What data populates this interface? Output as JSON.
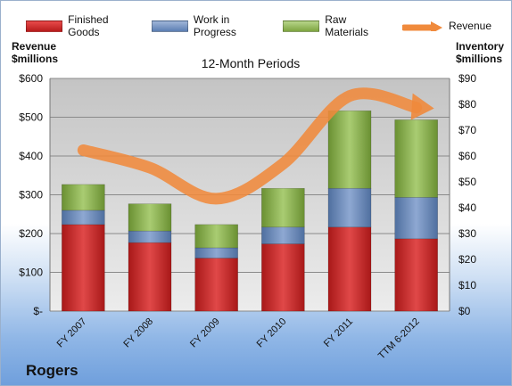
{
  "chart_data": {
    "type": "bar",
    "stacked": true,
    "subtitle": "12-Month Periods",
    "categories": [
      "FY 2007",
      "FY 2008",
      "FY 2009",
      "FY 2010",
      "FY 2011",
      "TTM 6-2012"
    ],
    "series": [
      {
        "name": "Finished Goods",
        "axis": "right",
        "color": "#c62828",
        "values": [
          33.5,
          26.5,
          20.5,
          26,
          32.5,
          28
        ]
      },
      {
        "name": "Work in Progress",
        "axis": "right",
        "color": "#6f8fc0",
        "values": [
          5.5,
          4.5,
          4,
          6.5,
          15,
          16
        ]
      },
      {
        "name": "Raw Materials",
        "axis": "right",
        "color": "#8fb454",
        "values": [
          10,
          10.5,
          9,
          15,
          30,
          30
        ]
      },
      {
        "name": "Revenue",
        "type": "line",
        "axis": "left",
        "color": "#f08a3c",
        "values": [
          415,
          370,
          290,
          380,
          555,
          525
        ]
      }
    ],
    "left_axis": {
      "title": "Revenue $millions",
      "min": 0,
      "max": 600,
      "ticks": [
        0,
        100,
        200,
        300,
        400,
        500,
        600
      ],
      "tick_labels": [
        "$-",
        "$100",
        "$200",
        "$300",
        "$400",
        "$500",
        "$600"
      ]
    },
    "right_axis": {
      "title": "Inventory $millions",
      "min": 0,
      "max": 90,
      "ticks": [
        0,
        10,
        20,
        30,
        40,
        50,
        60,
        70,
        80,
        90
      ],
      "tick_labels": [
        "$0",
        "$10",
        "$20",
        "$30",
        "$40",
        "$50",
        "$60",
        "$70",
        "$80",
        "$90"
      ]
    },
    "legend_position": "top",
    "grid": true,
    "company": "Rogers"
  }
}
